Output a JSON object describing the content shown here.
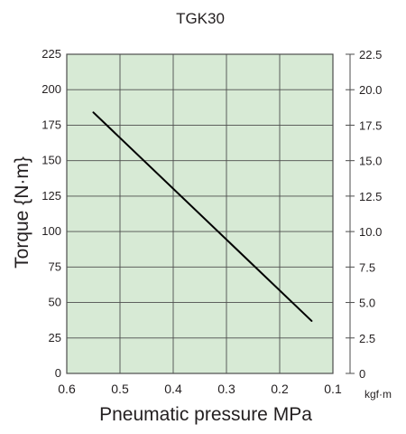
{
  "chart_data": {
    "type": "line",
    "title": "TGK30",
    "xlabel": "Pneumatic pressure MPa",
    "ylabel": "Torque {N·m}",
    "y2_unit": "kgf·m",
    "x_ticks": [
      "0.6",
      "0.5",
      "0.4",
      "0.3",
      "0.2",
      "0.1"
    ],
    "x_tick_values": [
      0.6,
      0.5,
      0.4,
      0.3,
      0.2,
      0.1
    ],
    "xlim": [
      0.6,
      0.1
    ],
    "y_ticks": [
      "0",
      "25",
      "50",
      "75",
      "100",
      "125",
      "150",
      "175",
      "200",
      "225"
    ],
    "y_tick_values": [
      0,
      25,
      50,
      75,
      100,
      125,
      150,
      175,
      200,
      225
    ],
    "ylim": [
      0,
      225
    ],
    "y2_ticks": [
      "0",
      "2.5",
      "5.0",
      "7.5",
      "10.0",
      "12.5",
      "15.0",
      "17.5",
      "20.0",
      "22.5"
    ],
    "y2_tick_values": [
      0,
      2.5,
      5.0,
      7.5,
      10.0,
      12.5,
      15.0,
      17.5,
      20.0,
      22.5
    ],
    "y2lim": [
      0,
      22.5
    ],
    "grid": true,
    "colors": {
      "plot_bg": "#d7ead5",
      "line": "#000000",
      "grid": "#4d4d4d",
      "text": "#231f20"
    },
    "series": [
      {
        "name": "",
        "x": [
          0.55,
          0.14
        ],
        "y": [
          184,
          37
        ]
      }
    ]
  }
}
